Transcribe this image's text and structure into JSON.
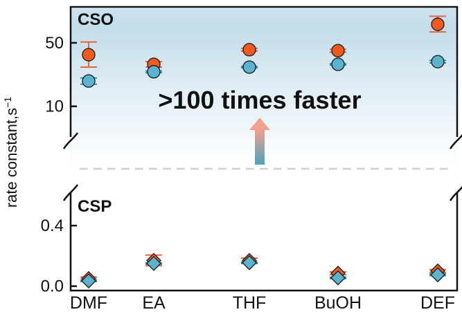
{
  "chart_data": {
    "type": "scatter",
    "ylabel": "rate constant,s",
    "ylabel_superscript": "−1",
    "categories": [
      "DMF",
      "EA",
      "THF",
      "BuOH",
      "DEF"
    ],
    "annotation": ">100 times faster",
    "colors": {
      "orange": "#f05a1e",
      "blue": "#5bb3d0",
      "error_bar": "#e8643a",
      "shade": "#dcebf3",
      "dashed": "#cfcfcf",
      "arrow_top": "#f4a08e",
      "arrow_bottom": "#4aa2bf"
    },
    "panels": [
      {
        "label": "CSO",
        "scale": "log",
        "ylim": [
          2.2,
          120
        ],
        "yticks": [
          10,
          50
        ],
        "ytick_labels": [
          "10",
          "50"
        ],
        "marker": "circle",
        "series": [
          {
            "color": "orange",
            "values": [
              37,
              29,
              42,
              41,
              80
            ],
            "errors_low": [
              10,
              2,
              1.5,
              1.5,
              14
            ],
            "errors_high": [
              14,
              2,
              1.5,
              1.5,
              18
            ]
          },
          {
            "color": "blue",
            "values": [
              19,
              24,
              27,
              29,
              31
            ],
            "errors_low": [
              1.5,
              0.5,
              0.5,
              0.5,
              1
            ],
            "errors_high": [
              1.5,
              0.5,
              0.5,
              0.5,
              1
            ]
          }
        ]
      },
      {
        "label": "CSP",
        "scale": "linear",
        "ylim": [
          -0.02,
          0.62
        ],
        "yticks": [
          0.0,
          0.4
        ],
        "ytick_labels": [
          "0.0",
          "0.4"
        ],
        "marker": "diamond",
        "series": [
          {
            "color": "orange",
            "values": [
              0.05,
              0.17,
              0.17,
              0.085,
              0.1
            ],
            "errors_low": [
              0.01,
              0.035,
              0.015,
              0.01,
              0.01
            ],
            "errors_high": [
              0.01,
              0.035,
              0.015,
              0.01,
              0.01
            ]
          },
          {
            "color": "blue",
            "values": [
              0.035,
              0.15,
              0.155,
              0.055,
              0.075
            ],
            "errors_low": [
              0.005,
              0.005,
              0.005,
              0.005,
              0.005
            ],
            "errors_high": [
              0.005,
              0.005,
              0.005,
              0.005,
              0.005
            ]
          }
        ]
      }
    ]
  }
}
